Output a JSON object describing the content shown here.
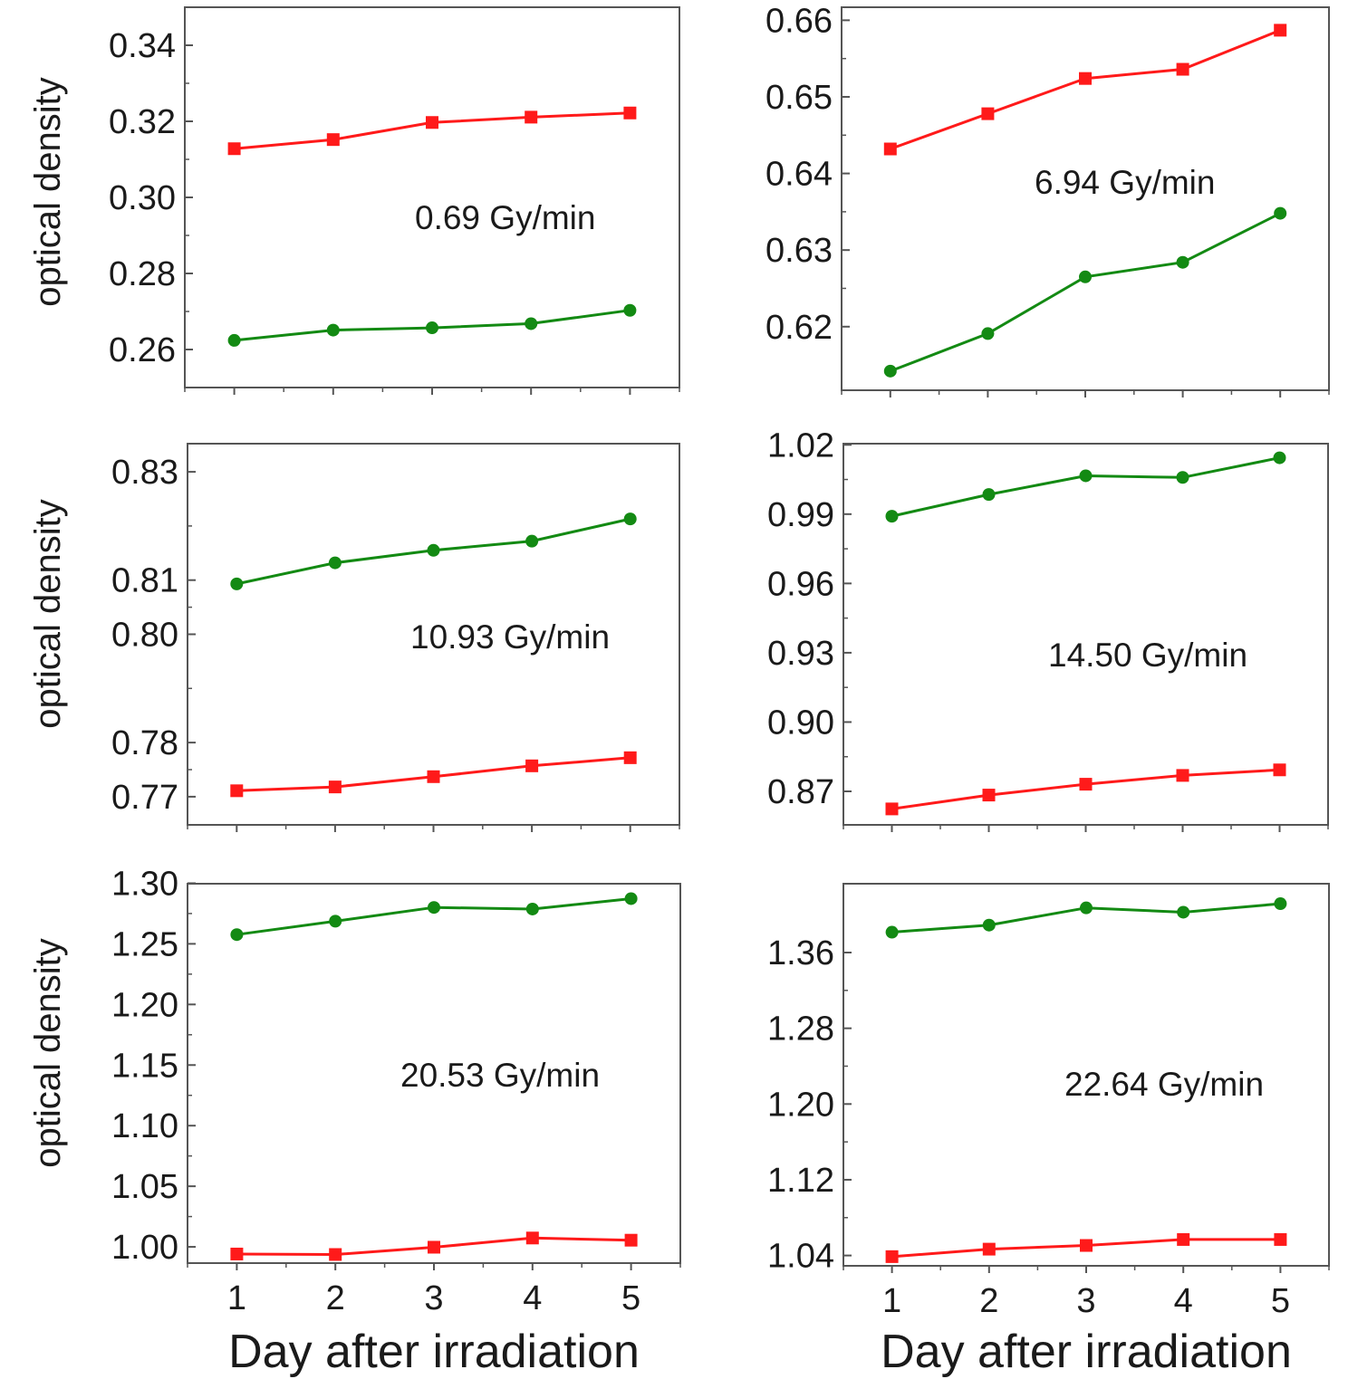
{
  "colors": {
    "series_red": "#ff1a1a",
    "series_green": "#138a13",
    "axis": "#555555"
  },
  "figure": {
    "xlabel": "Day after irradiation",
    "ylabel": "optical density"
  },
  "chart_data": [
    {
      "type": "line",
      "annotation": "0.69 Gy/min",
      "x": [
        1,
        2,
        3,
        4,
        5
      ],
      "xlim": [
        0.5,
        5.5
      ],
      "ylim": [
        0.25,
        0.35
      ],
      "yticks": [
        0.26,
        0.28,
        0.3,
        0.32,
        0.34
      ],
      "ytick_labels": [
        "0.26",
        "0.28",
        "0.30",
        "0.32",
        "0.34"
      ],
      "series": [
        {
          "name": "red-squares",
          "marker": "square",
          "color": "#ff1a1a",
          "values": [
            0.3128,
            0.3152,
            0.3197,
            0.3211,
            0.3222
          ]
        },
        {
          "name": "green-circles",
          "marker": "circle",
          "color": "#138a13",
          "values": [
            0.2624,
            0.2651,
            0.2657,
            0.2668,
            0.2703
          ]
        }
      ]
    },
    {
      "type": "line",
      "annotation": "6.94 Gy/min",
      "x": [
        1,
        2,
        3,
        4,
        5
      ],
      "xlim": [
        0.5,
        5.5
      ],
      "ylim": [
        0.6117,
        0.6617
      ],
      "yticks": [
        0.62,
        0.63,
        0.64,
        0.65,
        0.66
      ],
      "ytick_labels": [
        "0.62",
        "0.63",
        "0.64",
        "0.65",
        "0.66"
      ],
      "series": [
        {
          "name": "red-squares",
          "marker": "square",
          "color": "#ff1a1a",
          "values": [
            0.6432,
            0.6478,
            0.6524,
            0.6536,
            0.6587
          ]
        },
        {
          "name": "green-circles",
          "marker": "circle",
          "color": "#138a13",
          "values": [
            0.6142,
            0.6191,
            0.6265,
            0.6284,
            0.6348
          ]
        }
      ]
    },
    {
      "type": "line",
      "annotation": "10.93 Gy/min",
      "x": [
        1,
        2,
        3,
        4,
        5
      ],
      "xlim": [
        0.5,
        5.5
      ],
      "ylim": [
        0.7648,
        0.8352
      ],
      "yticks": [
        0.77,
        0.78,
        0.8,
        0.81,
        0.83
      ],
      "ytick_labels": [
        "0.77",
        "0.78",
        "0.80",
        "0.81",
        "0.83"
      ],
      "series": [
        {
          "name": "red-squares",
          "marker": "square",
          "color": "#ff1a1a",
          "values": [
            0.7711,
            0.7718,
            0.7737,
            0.7757,
            0.7772
          ]
        },
        {
          "name": "green-circles",
          "marker": "circle",
          "color": "#138a13",
          "values": [
            0.8093,
            0.8132,
            0.8155,
            0.8172,
            0.8213
          ]
        }
      ]
    },
    {
      "type": "line",
      "annotation": "14.50 Gy/min",
      "x": [
        1,
        2,
        3,
        4,
        5
      ],
      "xlim": [
        0.5,
        5.5
      ],
      "ylim": [
        0.8555,
        1.0205
      ],
      "yticks": [
        0.87,
        0.9,
        0.93,
        0.96,
        0.99,
        1.02
      ],
      "ytick_labels": [
        "0.87",
        "0.90",
        "0.93",
        "0.96",
        "0.99",
        "1.02"
      ],
      "series": [
        {
          "name": "red-squares",
          "marker": "square",
          "color": "#ff1a1a",
          "values": [
            0.8624,
            0.8684,
            0.8731,
            0.8769,
            0.8793
          ]
        },
        {
          "name": "green-circles",
          "marker": "circle",
          "color": "#138a13",
          "values": [
            0.9891,
            0.9985,
            1.0066,
            1.0059,
            1.0144
          ]
        }
      ]
    },
    {
      "type": "line",
      "annotation": "20.53 Gy/min",
      "x": [
        1,
        2,
        3,
        4,
        5
      ],
      "xlim": [
        0.5,
        5.5
      ],
      "ylim": [
        0.9866,
        1.2996
      ],
      "yticks": [
        1.0,
        1.05,
        1.1,
        1.15,
        1.2,
        1.25,
        1.3
      ],
      "ytick_labels": [
        "1.00",
        "1.05",
        "1.10",
        "1.15",
        "1.20",
        "1.25",
        "1.30"
      ],
      "series": [
        {
          "name": "red-squares",
          "marker": "square",
          "color": "#ff1a1a",
          "values": [
            0.9941,
            0.9937,
            0.9997,
            1.0073,
            1.0055
          ]
        },
        {
          "name": "green-circles",
          "marker": "circle",
          "color": "#138a13",
          "values": [
            1.2576,
            1.2687,
            1.28,
            1.2787,
            1.2873
          ]
        }
      ]
    },
    {
      "type": "line",
      "annotation": "22.64 Gy/min",
      "x": [
        1,
        2,
        3,
        4,
        5
      ],
      "xlim": [
        0.5,
        5.5
      ],
      "ylim": [
        1.0291,
        1.4327
      ],
      "yticks": [
        1.04,
        1.12,
        1.2,
        1.28,
        1.36
      ],
      "ytick_labels": [
        "1.04",
        "1.12",
        "1.20",
        "1.28",
        "1.36"
      ],
      "series": [
        {
          "name": "red-squares",
          "marker": "square",
          "color": "#ff1a1a",
          "values": [
            1.0388,
            1.0467,
            1.0506,
            1.0569,
            1.0569
          ]
        },
        {
          "name": "green-circles",
          "marker": "circle",
          "color": "#138a13",
          "values": [
            1.3815,
            1.389,
            1.4072,
            1.4026,
            1.4116
          ]
        }
      ]
    }
  ]
}
